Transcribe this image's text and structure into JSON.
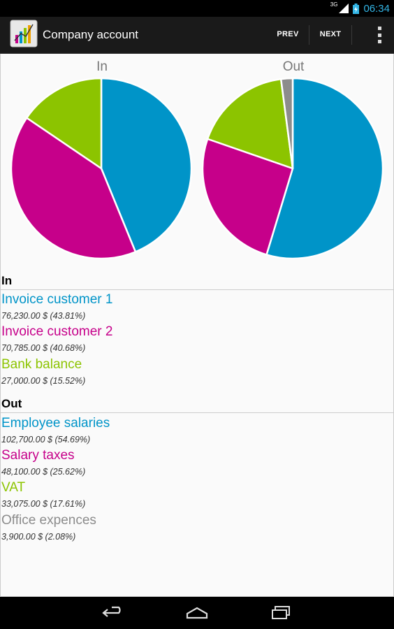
{
  "status_bar": {
    "time": "06:34",
    "network_type": "3G"
  },
  "action_bar": {
    "title": "Company account",
    "prev_label": "PREV",
    "next_label": "NEXT"
  },
  "colors": {
    "blue": "#0094c8",
    "magenta": "#c6008a",
    "green": "#8cc400",
    "gray": "#8c8c8c"
  },
  "chart_data": [
    {
      "type": "pie",
      "title": "In",
      "categories": [
        "Invoice customer 1",
        "Invoice customer 2",
        "Bank balance"
      ],
      "values": [
        43.81,
        40.68,
        15.52
      ],
      "colors": [
        "#0094c8",
        "#c6008a",
        "#8cc400"
      ]
    },
    {
      "type": "pie",
      "title": "Out",
      "categories": [
        "Employee salaries",
        "Salary taxes",
        "VAT",
        "Office expences"
      ],
      "values": [
        54.69,
        25.62,
        17.61,
        2.08
      ],
      "colors": [
        "#0094c8",
        "#c6008a",
        "#8cc400",
        "#8c8c8c"
      ]
    }
  ],
  "sections": [
    {
      "title": "In",
      "items": [
        {
          "name": "Invoice customer 1",
          "amount": "76,230.00 $ (43.81%)",
          "color": "#0094c8"
        },
        {
          "name": "Invoice customer 2",
          "amount": "70,785.00 $ (40.68%)",
          "color": "#c6008a"
        },
        {
          "name": "Bank balance",
          "amount": "27,000.00 $ (15.52%)",
          "color": "#8cc400"
        }
      ]
    },
    {
      "title": "Out",
      "items": [
        {
          "name": "Employee salaries",
          "amount": "102,700.00 $ (54.69%)",
          "color": "#0094c8"
        },
        {
          "name": "Salary taxes",
          "amount": "48,100.00 $ (25.62%)",
          "color": "#c6008a"
        },
        {
          "name": "VAT",
          "amount": "33,075.00 $ (17.61%)",
          "color": "#8cc400"
        },
        {
          "name": "Office expences",
          "amount": "3,900.00 $ (2.08%)",
          "color": "#8c8c8c"
        }
      ]
    }
  ],
  "icons": {
    "app": "app-chart-icon",
    "overflow": "overflow-menu-icon",
    "back": "back-icon",
    "home": "home-icon",
    "recents": "recent-apps-icon",
    "signal": "signal-icon",
    "battery": "battery-icon"
  }
}
